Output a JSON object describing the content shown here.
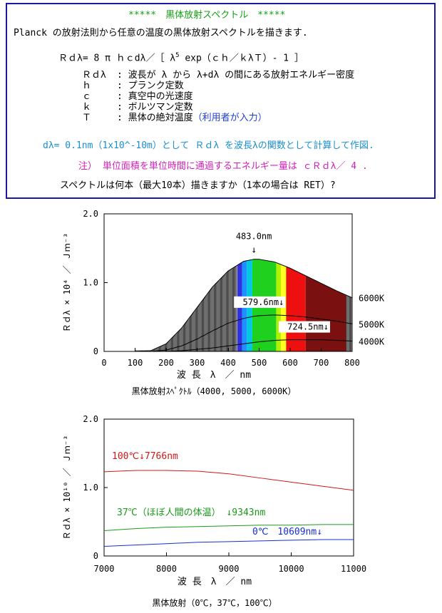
{
  "intro": {
    "title": "*****　黒体放射スペクトル　*****",
    "line1": "Planck の放射法則から任意の温度の黒体放射スペクトルを描きます.",
    "formula_main": "Ｒｄλ= 8 π ｈｃdλ／［ λ",
    "formula_exp": "5",
    "formula_tail": " exp（ｃｈ／ｋλＴ）- 1 ］",
    "defs": [
      {
        "sym": "Ｒｄλ",
        "desc": ": 波長が λ から λ+dλ の間にある放射エネルギー密度"
      },
      {
        "sym": "ｈ",
        "desc": ": プランク定数"
      },
      {
        "sym": "ｃ",
        "desc": ": 真空中の光速度"
      },
      {
        "sym": "ｋ",
        "desc": ": ボルツマン定数"
      },
      {
        "sym": "Ｔ",
        "desc": ": 黒体の絶対温度"
      }
    ],
    "user_input_note": "（利用者が入力）",
    "calc_note": "dλ= 0.1nm（1x10^-10m）として Ｒｄλ を波長λの関数として計算して作図.",
    "note2": "注） 単位面積を単位時間に通過するエネルギー量は ｃＲｄλ／ 4 .",
    "prompt": "スペクトルは何本（最大10本）描きますか（1本の場合は RET）?"
  },
  "chart_data": [
    {
      "type": "line",
      "x": [
        100,
        150,
        200,
        250,
        300,
        350,
        400,
        450,
        483,
        500,
        550,
        600,
        650,
        700,
        750,
        800
      ],
      "series": [
        {
          "name": "6000K",
          "values": [
            0.0,
            0.01,
            0.11,
            0.34,
            0.64,
            0.94,
            1.17,
            1.31,
            1.34,
            1.34,
            1.3,
            1.21,
            1.1,
            0.99,
            0.88,
            0.78
          ]
        },
        {
          "name": "5000K",
          "values": [
            0.0,
            0.0,
            0.02,
            0.08,
            0.18,
            0.3,
            0.41,
            0.48,
            0.51,
            0.52,
            0.53,
            0.52,
            0.5,
            0.47,
            0.44,
            0.4
          ]
        },
        {
          "name": "4000K",
          "values": [
            0.0,
            0.0,
            0.0,
            0.01,
            0.03,
            0.05,
            0.08,
            0.11,
            0.13,
            0.14,
            0.16,
            0.17,
            0.17,
            0.17,
            0.16,
            0.15
          ]
        }
      ],
      "annotations": [
        {
          "text": "483.0nm",
          "arrow": "↓",
          "x": 483,
          "y": 1.34
        },
        {
          "text": "579.6nm↓",
          "x": 580,
          "y": 0.53
        },
        {
          "text": "724.5nm↓",
          "x": 724,
          "y": 0.17
        }
      ],
      "xlim": [
        0,
        800
      ],
      "ylim": [
        0,
        2.0
      ],
      "xticks": [
        "0",
        "100",
        "200",
        "300",
        "400",
        "500",
        "600",
        "700",
        "800"
      ],
      "yticks": [
        "0",
        "1.0",
        "2.0"
      ],
      "xlabel": "波 長　λ　／ nm",
      "ylabel": "Ｒｄλ × 10⁴ ／ Ｊｍ⁻³",
      "caption": "黒体放射ｽﾍﾟｸﾄﾙ（4000, 5000, 6000K）",
      "spectrum_colors": [
        {
          "from": 430,
          "to": 445,
          "color": "#3030e0"
        },
        {
          "from": 445,
          "to": 460,
          "color": "#1e90ff"
        },
        {
          "from": 460,
          "to": 478,
          "color": "#00c8e0"
        },
        {
          "from": 478,
          "to": 555,
          "color": "#1fd01f"
        },
        {
          "from": 555,
          "to": 570,
          "color": "#b0f000"
        },
        {
          "from": 570,
          "to": 587,
          "color": "#ffff20"
        },
        {
          "from": 587,
          "to": 650,
          "color": "#ee1010"
        },
        {
          "from": 650,
          "to": 780,
          "color": "#7a1010"
        }
      ]
    },
    {
      "type": "line",
      "x": [
        7000,
        7500,
        8000,
        8500,
        9000,
        9500,
        10000,
        10500,
        11000
      ],
      "series": [
        {
          "name": "100℃",
          "values": [
            1.23,
            1.25,
            1.25,
            1.24,
            1.2,
            1.14,
            1.08,
            1.02,
            0.96
          ]
        },
        {
          "name": "37℃",
          "values": [
            0.37,
            0.4,
            0.42,
            0.43,
            0.44,
            0.45,
            0.45,
            0.46,
            0.46
          ]
        },
        {
          "name": "0℃",
          "values": [
            0.14,
            0.16,
            0.18,
            0.2,
            0.21,
            0.22,
            0.23,
            0.24,
            0.24
          ]
        }
      ],
      "annotations": [
        {
          "text": "100℃↓7766nm",
          "color": "#d01818"
        },
        {
          "text": "37℃（ほぼ人間の体温） ↓9343nm",
          "color": "#1a9a1a"
        },
        {
          "text": "0℃　10609nm↓",
          "color": "#1830d0"
        }
      ],
      "xlim": [
        7000,
        11000
      ],
      "ylim": [
        0,
        2.0
      ],
      "xticks": [
        "7000",
        "8000",
        "9000",
        "10000",
        "11000"
      ],
      "yticks": [
        "0",
        "1.0",
        "2.0"
      ],
      "xlabel": "波 長　λ　／ nm",
      "ylabel": "Ｒｄλ × 10¹⁰ ／ Ｊｍ⁻³",
      "caption": "黒体放射（0℃，37℃，100℃）"
    }
  ],
  "colors": {
    "panel_border": "#1a1aa0",
    "red": "#d01818",
    "green": "#1a9a1a",
    "blue": "#1830d0"
  }
}
